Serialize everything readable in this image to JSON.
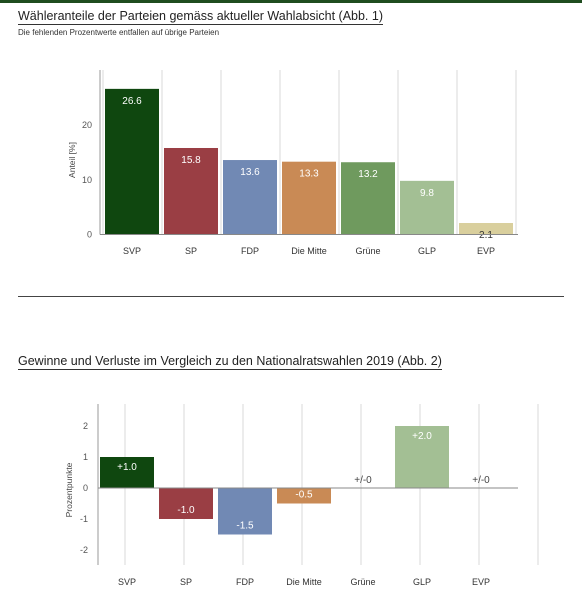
{
  "header": {
    "title1": "Wähleranteile der Parteien gemäss aktueller Wahlabsicht  (Abb. 1)",
    "subtitle1": "Die fehlenden Prozentwerte entfallen auf übrige Parteien",
    "title2": "Gewinne und Verluste im Vergleich zu den Nationalratswahlen 2019  (Abb. 2)"
  },
  "chart_data": [
    {
      "type": "bar",
      "title": "Wähleranteile der Parteien gemäss aktueller Wahlabsicht  (Abb. 1)",
      "subtitle": "Die fehlenden Prozentwerte entfallen auf übrige Parteien",
      "xlabel": "",
      "ylabel": "Anteil [%]",
      "ylim": [
        0,
        28
      ],
      "yticks": [
        "0",
        "10",
        "20"
      ],
      "grid": "vertical",
      "categories": [
        "SVP",
        "SP",
        "FDP",
        "Die Mitte",
        "Grüne",
        "GLP",
        "EVP"
      ],
      "values": [
        26.6,
        15.8,
        13.6,
        13.3,
        13.2,
        9.8,
        2.1
      ],
      "labels": [
        "26.6",
        "15.8",
        "13.6",
        "13.3",
        "13.2",
        "9.8",
        "2.1"
      ],
      "colors": [
        "#0f470f",
        "#9a3e44",
        "#7189b4",
        "#c98a55",
        "#6f9a5e",
        "#a3bf94",
        "#d9cf9d"
      ]
    },
    {
      "type": "bar",
      "title": "Gewinne und Verluste im Vergleich zu den Nationalratswahlen 2019  (Abb. 2)",
      "xlabel": "",
      "ylabel": "Prozentpunkte",
      "ylim": [
        -2.3,
        2.4
      ],
      "yticks": [
        "2",
        "1",
        "0",
        "-1",
        "-2"
      ],
      "grid": "vertical",
      "categories": [
        "SVP",
        "SP",
        "FDP",
        "Die Mitte",
        "Grüne",
        "GLP",
        "EVP"
      ],
      "values": [
        1.0,
        -1.0,
        -1.5,
        -0.5,
        0,
        2.0,
        0
      ],
      "labels": [
        "+1.0",
        "-1.0",
        "-1.5",
        "-0.5",
        "+/-0",
        "+2.0",
        "+/-0"
      ],
      "colors": [
        "#0f470f",
        "#9a3e44",
        "#7189b4",
        "#c98a55",
        "#6f9a5e",
        "#a3bf94",
        "#d9cf9d"
      ]
    }
  ]
}
